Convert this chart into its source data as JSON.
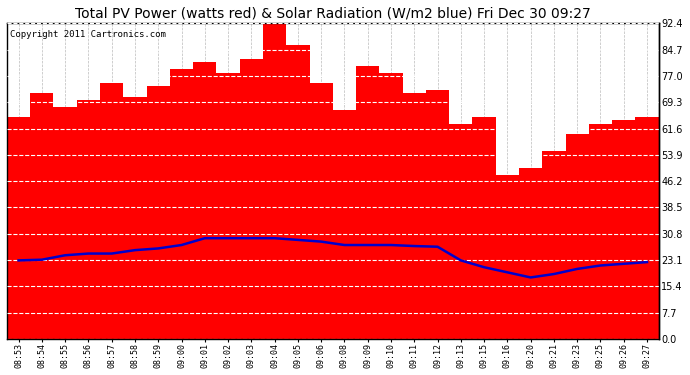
{
  "title": "Total PV Power (watts red) & Solar Radiation (W/m2 blue) Fri Dec 30 09:27",
  "copyright": "Copyright 2011 Cartronics.com",
  "x_labels": [
    "08:53",
    "08:54",
    "08:55",
    "08:56",
    "08:57",
    "08:58",
    "08:59",
    "09:00",
    "09:01",
    "09:02",
    "09:03",
    "09:04",
    "09:05",
    "09:06",
    "09:08",
    "09:09",
    "09:10",
    "09:11",
    "09:12",
    "09:13",
    "09:15",
    "09:16",
    "09:20",
    "09:21",
    "09:23",
    "09:25",
    "09:26",
    "09:27"
  ],
  "pv_values": [
    65,
    72,
    68,
    70,
    75,
    71,
    74,
    79,
    81,
    78,
    82,
    94,
    86,
    75,
    67,
    80,
    78,
    72,
    73,
    63,
    65,
    48,
    50,
    55,
    60,
    63,
    64,
    65
  ],
  "solar_values": [
    23.0,
    23.2,
    24.5,
    25.0,
    25.0,
    26.0,
    26.5,
    27.5,
    29.5,
    29.5,
    29.5,
    29.5,
    29.0,
    28.5,
    27.5,
    27.5,
    27.5,
    27.2,
    27.0,
    23.0,
    21.0,
    19.5,
    18.0,
    19.0,
    20.5,
    21.5,
    22.0,
    22.5
  ],
  "ylim": [
    0,
    92.4
  ],
  "yticks_right": [
    0.0,
    7.7,
    15.4,
    23.1,
    30.8,
    38.5,
    46.2,
    53.9,
    61.6,
    69.3,
    77.0,
    84.7,
    92.4
  ],
  "bar_color": "#ff0000",
  "line_color": "#0000cc",
  "bg_color": "#ffffff",
  "plot_bg_color": "#ffffff",
  "white_grid_color": "#ffffff",
  "gray_grid_color": "#bbbbbb",
  "title_fontsize": 10,
  "copyright_fontsize": 6.5
}
